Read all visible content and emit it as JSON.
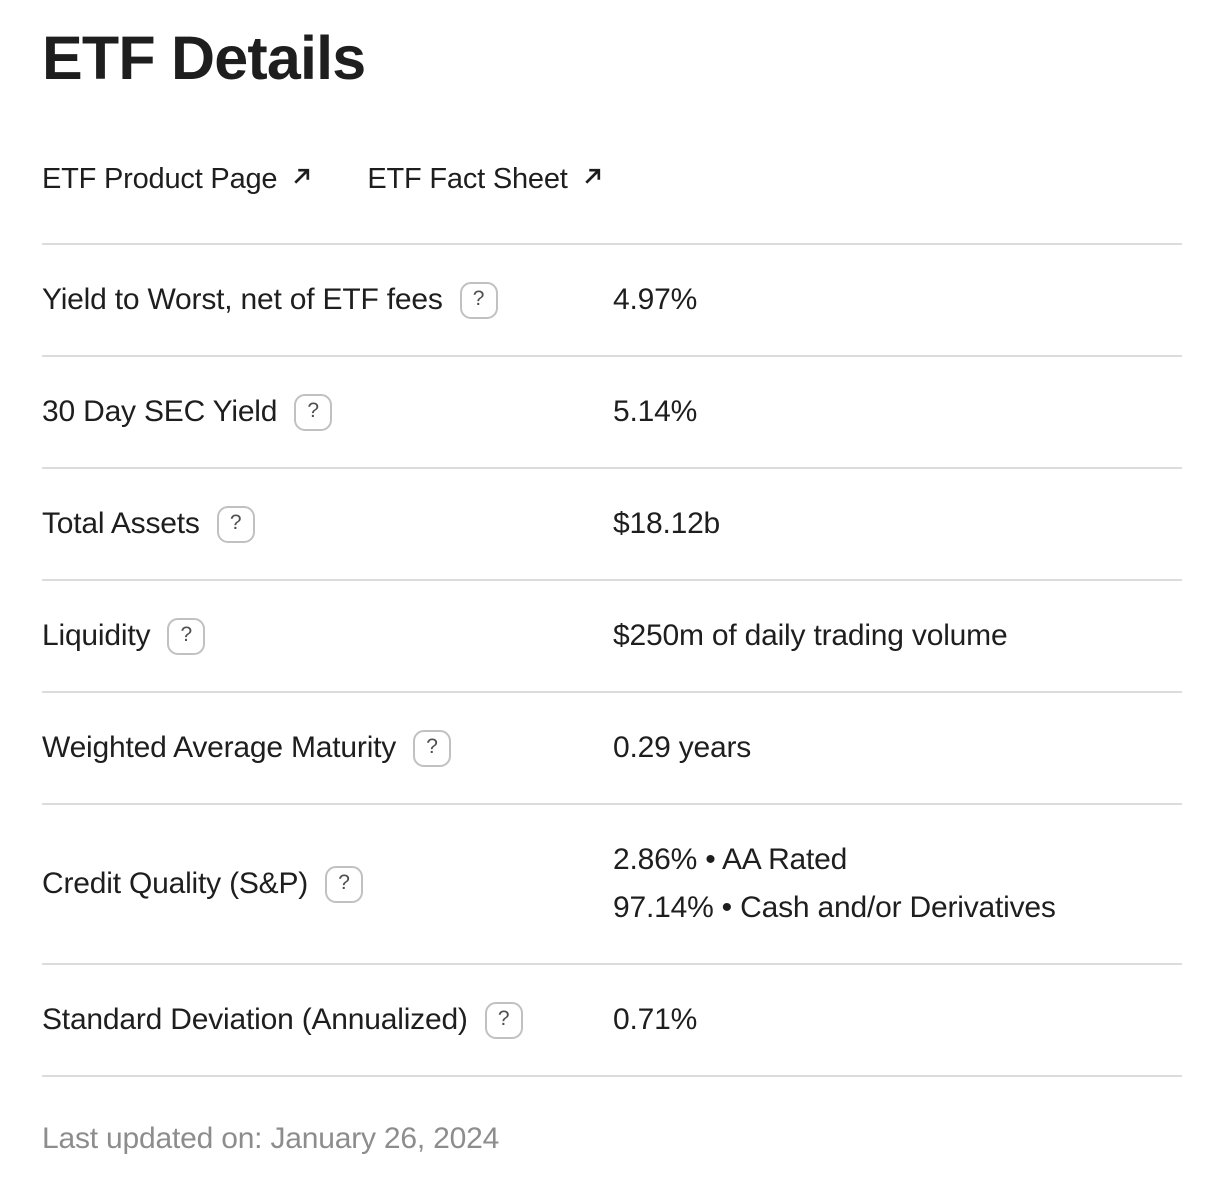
{
  "header": {
    "title": "ETF Details",
    "links": [
      {
        "label": "ETF Product Page"
      },
      {
        "label": "ETF Fact Sheet"
      }
    ]
  },
  "table": {
    "help_glyph": "?",
    "rows": [
      {
        "label": "Yield to Worst, net of ETF fees",
        "values": [
          "4.97%"
        ]
      },
      {
        "label": "30 Day SEC Yield",
        "values": [
          "5.14%"
        ]
      },
      {
        "label": "Total Assets",
        "values": [
          "$18.12b"
        ]
      },
      {
        "label": "Liquidity",
        "values": [
          "$250m of daily trading volume"
        ]
      },
      {
        "label": "Weighted Average Maturity",
        "values": [
          "0.29 years"
        ]
      },
      {
        "label": "Credit Quality (S&P)",
        "values": [
          "2.86% • AA Rated",
          "97.14% • Cash and/or Derivatives"
        ]
      },
      {
        "label": "Standard Deviation (Annualized)",
        "values": [
          "0.71%"
        ]
      }
    ]
  },
  "footer": {
    "text": "Last updated on: January 26, 2024"
  },
  "colors": {
    "text": "#1e1e1e",
    "muted": "#8d8d8d",
    "divider": "#dcdce0",
    "help-border": "#c1c1c1",
    "help-text": "#4f4f4f"
  }
}
